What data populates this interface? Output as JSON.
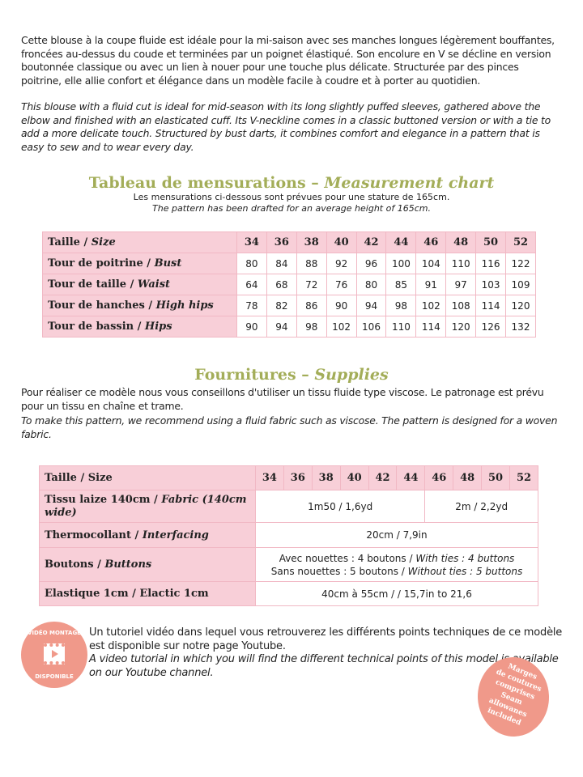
{
  "intro": {
    "fr": "Cette blouse à la coupe fluide est idéale pour la mi-saison avec ses manches longues légèrement bouffantes, froncées au-dessus du coude et terminées par un poignet élastiqué. Son encolure en V se décline en version boutonnée classique ou avec un lien à nouer pour une touche plus délicate. Structurée par des pinces poitrine, elle allie confort et élégance dans un modèle facile à coudre et à porter au quotidien.",
    "en": "This blouse with a fluid cut is ideal for mid-season with its long slightly puffed sleeves, gathered above the elbow and finished with an elasticated cuff. Its V-neckline comes in a classic buttoned version or with a tie to add a more delicate touch. Structured by bust darts, it combines comfort and elegance in a pattern that is easy to sew and to wear every day."
  },
  "measure": {
    "title_fr": "Tableau de mensurations – ",
    "title_en": "Measurement chart",
    "sub_fr": "Les mensurations ci-dessous sont prévues pour une stature de 165cm.",
    "sub_en": "The pattern has been drafted for an average height of 165cm.",
    "header": {
      "fr": "Taille / ",
      "en": "Size"
    },
    "sizes": [
      "34",
      "36",
      "38",
      "40",
      "42",
      "44",
      "46",
      "48",
      "50",
      "52"
    ],
    "rows": [
      {
        "fr": "Tour de poitrine / ",
        "en": "Bust",
        "values": [
          "80",
          "84",
          "88",
          "92",
          "96",
          "100",
          "104",
          "110",
          "116",
          "122"
        ]
      },
      {
        "fr": "Tour de taille / ",
        "en": "Waist",
        "values": [
          "64",
          "68",
          "72",
          "76",
          "80",
          "85",
          "91",
          "97",
          "103",
          "109"
        ]
      },
      {
        "fr": "Tour de hanches / ",
        "en": "High hips",
        "values": [
          "78",
          "82",
          "86",
          "90",
          "94",
          "98",
          "102",
          "108",
          "114",
          "120"
        ]
      },
      {
        "fr": "Tour de bassin / ",
        "en": "Hips",
        "values": [
          "90",
          "94",
          "98",
          "102",
          "106",
          "110",
          "114",
          "120",
          "126",
          "132"
        ]
      }
    ]
  },
  "supplies": {
    "title_fr": "Fournitures – ",
    "title_en": "Supplies",
    "text_fr": "Pour réaliser ce modèle nous vous conseillons d'utiliser un tissu fluide type viscose. Le patronage est prévu pour un tissu en chaîne et trame.",
    "text_en": "To make this pattern, we recommend using a fluid fabric such as viscose. The pattern is designed for a woven fabric.",
    "header": "Taille / Size",
    "fabric": {
      "fr": "Tissu laize 140cm / ",
      "en": "Fabric (140cm wide)",
      "v1": "1m50 / 1,6yd",
      "v2": "2m / 2,2yd"
    },
    "interfacing": {
      "fr": "Thermocollant / ",
      "en": "Interfacing",
      "v": "20cm / 7,9in"
    },
    "buttons": {
      "fr": "Boutons / ",
      "en": "Buttons",
      "l1_fr": "Avec nouettes : 4 boutons / ",
      "l1_en": "With ties : 4 buttons",
      "l2_fr": "Sans nouettes : 5 boutons / ",
      "l2_en": "Without ties : 5 buttons"
    },
    "elastic": {
      "label": "Elastique 1cm / Elactic 1cm",
      "v": "40cm à 55cm / / 15,7in to 21,6"
    }
  },
  "video": {
    "badge_top": "VIDÉO MONTAGE",
    "badge_bottom": "DISPONIBLE",
    "fr": "Un tutoriel vidéo dans lequel vous retrouverez les différents points techniques de ce modèle est disponible sur notre page Youtube.",
    "en": "A video tutorial in which you will find the different technical points of this model is available on our Youtube channel."
  },
  "seam_badge": [
    "Marges",
    "de coutures",
    "comprises",
    "Seam",
    "allowanes",
    "included"
  ],
  "colors": {
    "pink": "#f8cfd8",
    "green": "#a3ad58",
    "salmon": "#f0998a"
  }
}
